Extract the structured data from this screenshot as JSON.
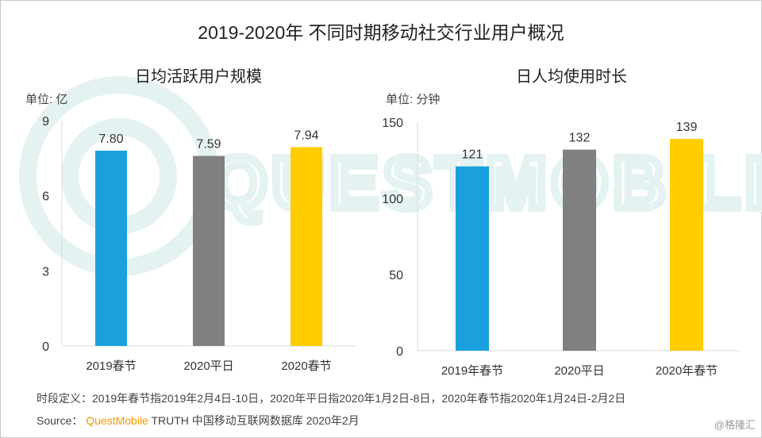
{
  "title": "2019-2020年 不同时期移动社交行业用户概况",
  "watermark": "QUESTMOBILE",
  "colors": {
    "blue": "#1aa0dc",
    "gray": "#808080",
    "yellow": "#ffcc00",
    "axis": "#d0dede",
    "brand": "#f39800"
  },
  "chart_data": [
    {
      "type": "bar",
      "title": "日均活跃用户规模",
      "unit_label": "单位: 亿",
      "categories": [
        "2019春节",
        "2020平日",
        "2020春节"
      ],
      "values": [
        7.8,
        7.59,
        7.94
      ],
      "value_labels": [
        "7.80",
        "7.59",
        "7.94"
      ],
      "bar_colors": [
        "#1aa0dc",
        "#808080",
        "#ffcc00"
      ],
      "ylim": [
        0,
        9
      ],
      "yticks": [
        "0",
        "3",
        "6",
        "9"
      ],
      "grid": false,
      "legend": "none"
    },
    {
      "type": "bar",
      "title": "日人均使用时长",
      "unit_label": "单位: 分钟",
      "categories": [
        "2019年春节",
        "2020平日",
        "2020年春节"
      ],
      "values": [
        121,
        132,
        139
      ],
      "value_labels": [
        "121",
        "132",
        "139"
      ],
      "bar_colors": [
        "#1aa0dc",
        "#808080",
        "#ffcc00"
      ],
      "ylim": [
        0,
        150
      ],
      "yticks": [
        "0",
        "50",
        "100",
        "150"
      ],
      "grid": false,
      "legend": "none"
    }
  ],
  "footer": {
    "definition": "时段定义：2019年春节指2019年2月4日-10日，2020年平日指2020年1月2日-8日，2020年春节指2020年1月24日-2月2日",
    "source_prefix": "Source：",
    "source_brand": "QuestMobile",
    "source_rest": " TRUTH 中国移动互联网数据库 2020年2月",
    "credit": "@格隆汇"
  }
}
